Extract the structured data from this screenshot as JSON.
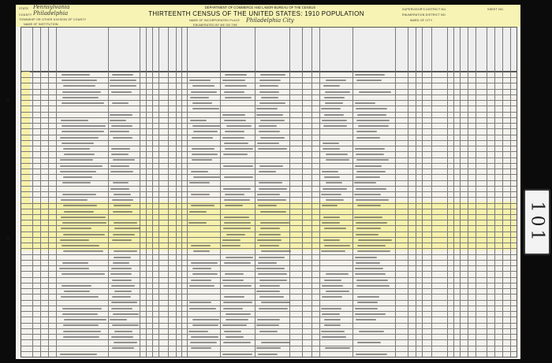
{
  "header": {
    "state_label": "State",
    "state_value": "Pennsylvania",
    "county_label": "County",
    "county_value": "Philadelphia",
    "township_label": "Township or other division of county",
    "institution_label": "Name of institution",
    "department": "DEPARTMENT OF COMMERCE AND LABOR-BUREAU OF THE CENSUS",
    "title": "THIRTEENTH CENSUS OF THE UNITED STATES: 1910 POPULATION",
    "place_label": "Name of incorporated place",
    "place_value": "Philadelphia City",
    "enumerated_label": "Enumerated by me on the",
    "supervisor_label": "Supervisor's District No.",
    "enumeration_label": "Enumeration District No.",
    "ward_label": "Ward of city",
    "sheet_label": "Sheet No."
  },
  "stamp": "101",
  "colors": {
    "highlight": "#f7f096",
    "paper": "#f4f2ec",
    "background": "#0b0b0b"
  }
}
